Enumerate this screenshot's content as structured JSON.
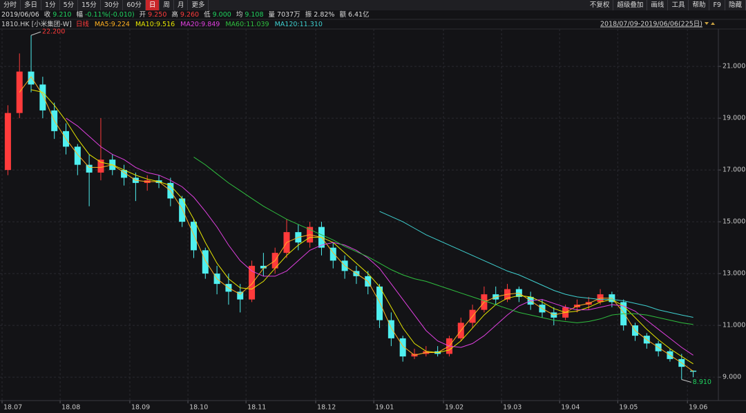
{
  "toolbar": {
    "tabs": [
      "分时",
      "多日",
      "1分",
      "5分",
      "15分",
      "30分",
      "60分",
      "日",
      "周",
      "月",
      "更多"
    ],
    "active_tab": 7,
    "tools": [
      "不复权",
      "超级叠加",
      "画线",
      "工具",
      "帮助",
      "F9",
      "隐藏"
    ]
  },
  "quote": {
    "date": "2019/06/06",
    "fields": [
      {
        "label": "收",
        "value": "9.210",
        "color": "#1fd25f"
      },
      {
        "label": "幅",
        "value": "-0.11%(-0.010)",
        "color": "#1fd25f"
      },
      {
        "label": "开",
        "value": "9.250",
        "color": "#ff3b3b"
      },
      {
        "label": "高",
        "value": "9.260",
        "color": "#ff3b3b"
      },
      {
        "label": "低",
        "value": "9.000",
        "color": "#1fd25f"
      },
      {
        "label": "均",
        "value": "9.108",
        "color": "#1fd25f"
      },
      {
        "label": "量",
        "value": "7037万",
        "color": "#dcdcdc"
      },
      {
        "label": "振",
        "value": "2.82%",
        "color": "#dcdcdc"
      },
      {
        "label": "额",
        "value": "6.41亿",
        "color": "#dcdcdc"
      }
    ]
  },
  "chart_data": {
    "type": "candlestick",
    "symbol": "1810.HK [小米集团-W]",
    "period_label": "日线",
    "period_color": "#ff3b3b",
    "range_label": "2018/07/09-2019/06/06(225日)",
    "categories": [
      "18.07",
      null,
      null,
      null,
      null,
      "18.08",
      null,
      null,
      null,
      null,
      null,
      "18.09",
      null,
      null,
      null,
      null,
      "18.10",
      null,
      null,
      null,
      null,
      "18.11",
      null,
      null,
      null,
      null,
      null,
      "18.12",
      null,
      null,
      null,
      null,
      "19.01",
      null,
      null,
      null,
      null,
      null,
      "19.02",
      null,
      null,
      null,
      null,
      "19.03",
      null,
      null,
      null,
      null,
      "19.04",
      null,
      null,
      null,
      null,
      "19.05",
      null,
      null,
      null,
      null,
      null,
      "19.06"
    ],
    "open": [
      17.0,
      19.2,
      20.8,
      20.3,
      19.3,
      18.5,
      17.9,
      17.2,
      16.9,
      17.4,
      17.0,
      16.7,
      16.5,
      16.6,
      16.5,
      15.9,
      15.0,
      13.9,
      13.0,
      12.6,
      12.3,
      12.0,
      13.3,
      13.2,
      13.8,
      14.6,
      14.2,
      14.8,
      14.0,
      13.5,
      13.1,
      12.9,
      12.5,
      11.2,
      10.5,
      9.8,
      9.9,
      10.0,
      9.9,
      10.5,
      11.1,
      11.6,
      12.2,
      12.0,
      12.4,
      12.1,
      11.8,
      11.5,
      11.3,
      11.7,
      11.8,
      11.9,
      12.2,
      11.9,
      11.0,
      10.6,
      10.3,
      10.0,
      9.7,
      9.25
    ],
    "high": [
      19.5,
      21.5,
      22.2,
      20.6,
      19.6,
      18.8,
      18.0,
      17.6,
      19.0,
      17.6,
      17.2,
      16.9,
      16.8,
      16.8,
      16.7,
      16.0,
      15.1,
      14.0,
      13.3,
      13.0,
      12.6,
      13.5,
      13.8,
      14.0,
      15.1,
      14.9,
      15.0,
      15.0,
      14.2,
      13.7,
      13.3,
      13.1,
      12.6,
      11.5,
      10.6,
      10.1,
      10.2,
      10.2,
      10.6,
      11.3,
      11.8,
      12.5,
      12.5,
      12.6,
      12.5,
      12.3,
      12.0,
      11.7,
      11.8,
      12.0,
      12.1,
      12.4,
      12.3,
      12.0,
      11.1,
      10.7,
      10.4,
      10.1,
      9.9,
      9.26
    ],
    "low": [
      16.8,
      19.0,
      20.0,
      19.0,
      18.2,
      17.6,
      16.8,
      15.6,
      16.6,
      16.8,
      16.4,
      15.8,
      16.2,
      16.3,
      15.6,
      14.8,
      13.6,
      12.8,
      12.2,
      11.8,
      11.5,
      11.9,
      12.9,
      13.0,
      13.6,
      13.9,
      14.0,
      13.7,
      13.2,
      12.8,
      12.6,
      12.2,
      10.9,
      10.2,
      9.6,
      9.7,
      9.8,
      9.8,
      9.8,
      10.4,
      10.9,
      11.5,
      11.8,
      11.9,
      11.9,
      11.6,
      11.3,
      11.0,
      11.2,
      11.5,
      11.6,
      11.8,
      11.7,
      10.8,
      10.4,
      10.1,
      9.8,
      9.6,
      8.91,
      9.0
    ],
    "close": [
      19.2,
      20.8,
      20.3,
      19.3,
      18.5,
      17.9,
      17.2,
      16.9,
      17.4,
      17.0,
      16.7,
      16.5,
      16.6,
      16.5,
      15.9,
      15.0,
      13.9,
      13.0,
      12.6,
      12.3,
      12.0,
      13.3,
      13.2,
      13.8,
      14.6,
      14.2,
      14.8,
      14.0,
      13.5,
      13.1,
      12.9,
      12.5,
      11.2,
      10.5,
      9.8,
      9.9,
      10.0,
      9.9,
      10.5,
      11.1,
      11.6,
      12.2,
      12.0,
      12.4,
      12.1,
      11.8,
      11.5,
      11.3,
      11.7,
      11.8,
      11.9,
      12.2,
      11.9,
      11.0,
      10.6,
      10.3,
      10.0,
      9.7,
      9.4,
      9.21
    ],
    "up_color": "#ff3b3b",
    "down_color": "#4ff0f0",
    "series": [
      {
        "name": "MA5:9.224",
        "color": "#ffb020",
        "values": [
          null,
          20.0,
          20.6,
          19.9,
          18.9,
          18.2,
          17.6,
          17.1,
          17.1,
          17.2,
          16.9,
          16.6,
          16.55,
          16.55,
          16.2,
          15.5,
          14.5,
          13.5,
          12.8,
          12.45,
          12.2,
          12.6,
          13.2,
          13.5,
          14.2,
          14.4,
          14.5,
          14.4,
          13.8,
          13.3,
          13.0,
          12.7,
          11.9,
          10.9,
          10.2,
          9.85,
          9.95,
          9.95,
          10.2,
          10.8,
          11.35,
          11.9,
          12.1,
          12.2,
          12.25,
          11.95,
          11.65,
          11.4,
          11.5,
          11.75,
          11.85,
          12.05,
          12.05,
          11.5,
          10.8,
          10.45,
          10.15,
          9.85,
          9.55,
          9.224
        ]
      },
      {
        "name": "MA10:9.516",
        "color": "#e6e600",
        "values": [
          null,
          null,
          20.1,
          20.0,
          19.5,
          18.9,
          18.2,
          17.6,
          17.3,
          17.2,
          17.0,
          16.8,
          16.65,
          16.55,
          16.4,
          15.9,
          15.1,
          14.2,
          13.4,
          12.8,
          12.45,
          12.4,
          12.7,
          13.2,
          13.7,
          14.1,
          14.4,
          14.4,
          14.2,
          13.8,
          13.4,
          13.0,
          12.5,
          11.7,
          10.9,
          10.3,
          10.0,
          9.95,
          10.05,
          10.4,
          10.9,
          11.4,
          11.8,
          12.05,
          12.15,
          12.1,
          11.9,
          11.65,
          11.5,
          11.55,
          11.7,
          11.9,
          12.0,
          11.75,
          11.3,
          10.85,
          10.45,
          10.1,
          9.8,
          9.516
        ]
      },
      {
        "name": "MA20:9.849",
        "color": "#e040e0",
        "values": [
          null,
          null,
          null,
          null,
          null,
          19.0,
          18.7,
          18.3,
          17.9,
          17.6,
          17.4,
          17.1,
          16.9,
          16.8,
          16.6,
          16.35,
          15.95,
          15.4,
          14.8,
          14.1,
          13.5,
          13.1,
          12.9,
          12.9,
          13.1,
          13.5,
          13.9,
          14.1,
          14.2,
          14.1,
          13.9,
          13.6,
          13.2,
          12.6,
          12.0,
          11.4,
          10.8,
          10.4,
          10.2,
          10.15,
          10.3,
          10.6,
          11.0,
          11.4,
          11.75,
          11.95,
          12.0,
          11.85,
          11.7,
          11.6,
          11.6,
          11.7,
          11.8,
          11.75,
          11.55,
          11.2,
          10.85,
          10.5,
          10.15,
          9.849
        ]
      },
      {
        "name": "MA60:11.039",
        "color": "#2fbf3f",
        "values": [
          null,
          null,
          null,
          null,
          null,
          null,
          null,
          null,
          null,
          null,
          null,
          null,
          null,
          null,
          null,
          null,
          17.5,
          17.2,
          16.85,
          16.5,
          16.2,
          15.9,
          15.6,
          15.35,
          15.1,
          14.9,
          14.7,
          14.5,
          14.3,
          14.05,
          13.85,
          13.65,
          13.4,
          13.15,
          12.95,
          12.8,
          12.7,
          12.55,
          12.4,
          12.25,
          12.1,
          11.95,
          11.8,
          11.65,
          11.5,
          11.4,
          11.3,
          11.2,
          11.15,
          11.1,
          11.15,
          11.25,
          11.4,
          11.45,
          11.45,
          11.4,
          11.3,
          11.2,
          11.1,
          11.039
        ]
      },
      {
        "name": "MA120:11.310",
        "color": "#3fd0d0",
        "values": [
          null,
          null,
          null,
          null,
          null,
          null,
          null,
          null,
          null,
          null,
          null,
          null,
          null,
          null,
          null,
          null,
          null,
          null,
          null,
          null,
          null,
          null,
          null,
          null,
          null,
          null,
          null,
          null,
          null,
          null,
          null,
          null,
          15.4,
          15.2,
          15.0,
          14.75,
          14.5,
          14.3,
          14.1,
          13.9,
          13.7,
          13.5,
          13.3,
          13.1,
          12.95,
          12.75,
          12.55,
          12.35,
          12.2,
          12.1,
          12.05,
          12.0,
          12.0,
          11.95,
          11.85,
          11.75,
          11.6,
          11.5,
          11.4,
          11.31
        ]
      }
    ],
    "ylim": [
      8.15,
      22.39
    ],
    "yticks": [
      {
        "value": 9,
        "label": "9.000"
      },
      {
        "value": 11,
        "label": "11.000"
      },
      {
        "value": 13,
        "label": "13.000"
      },
      {
        "value": 15,
        "label": "15.000"
      },
      {
        "value": 17,
        "label": "17.000"
      },
      {
        "value": 19,
        "label": "19.000"
      },
      {
        "value": 21,
        "label": "21.000"
      }
    ],
    "grid": true,
    "annotations": [
      {
        "value": 22.2,
        "label": "22.200",
        "color": "#ff3b3b"
      },
      {
        "value": 8.91,
        "label": "8.910",
        "color": "#1fd25f"
      }
    ]
  }
}
